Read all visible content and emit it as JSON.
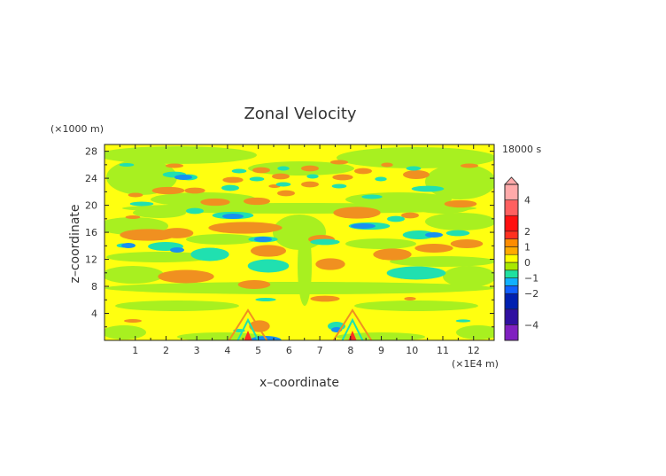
{
  "chart_data": {
    "type": "heatmap",
    "subtype": "filled-contour",
    "title": "Zonal Velocity",
    "time_label": "18000 s",
    "xlabel": "x–coordinate",
    "ylabel": "z–coordinate",
    "x_units": "(×1E4 m)",
    "y_units": "(×1000 m)",
    "xlim": [
      0,
      12.67
    ],
    "ylim": [
      0,
      29
    ],
    "x_ticks": [
      "1",
      "2",
      "3",
      "4",
      "5",
      "6",
      "7",
      "8",
      "9",
      "10",
      "11",
      "12"
    ],
    "x_tick_values": [
      1,
      2,
      3,
      4,
      5,
      6,
      7,
      8,
      9,
      10,
      11,
      12
    ],
    "y_ticks": [
      "4",
      "8",
      "12",
      "16",
      "20",
      "24",
      "28"
    ],
    "y_tick_values": [
      4,
      8,
      12,
      16,
      20,
      24,
      28
    ],
    "colorbar": {
      "levels": [
        -5,
        -4,
        -3,
        -2,
        -1.5,
        -1,
        -0.5,
        0,
        0.5,
        1,
        1.5,
        2,
        3,
        4,
        5
      ],
      "colors": [
        "#8020c0",
        "#3010a0",
        "#0020b0",
        "#1060ff",
        "#10b0ff",
        "#20e0a0",
        "#a8e800",
        "#ffff00",
        "#ffaa00",
        "#ff8c00",
        "#ff3020",
        "#ff1010",
        "#ff6060",
        "#ffaaaa"
      ],
      "labels": [
        "4",
        "2",
        "1",
        "0",
        "−1",
        "−2",
        "−4"
      ],
      "label_values": [
        4,
        2,
        1,
        0,
        -1,
        -2,
        -4
      ],
      "extend": "max"
    },
    "field_colors": {
      "positive_weak": "#ffff10",
      "negative_weak": "#a8f020",
      "positive": "#f09020",
      "negative": "#20e0b0",
      "negative_strong": "#1890f0"
    }
  }
}
